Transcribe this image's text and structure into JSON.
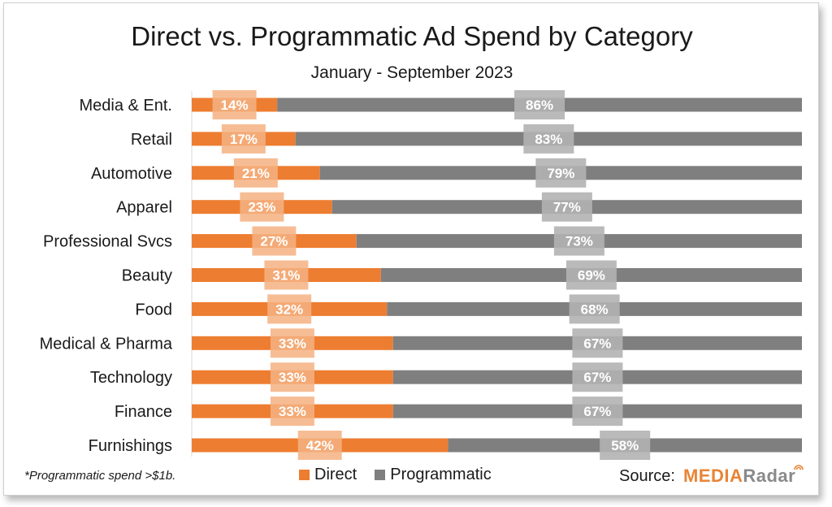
{
  "colors": {
    "direct": "#ed7d31",
    "programmatic": "#7f7f7f",
    "direct_label_bg": "#f4b183",
    "programmatic_label_bg": "#b3b3b3"
  },
  "footnote": "*Programmatic spend >$1b.",
  "source": {
    "label": "Source:",
    "logo_part1": "MEDIA",
    "logo_part2": "Radar",
    "logo_icon": "radar-signal-icon"
  },
  "chart_data": {
    "type": "bar",
    "orientation": "horizontal",
    "stacked": true,
    "percent_stacked": true,
    "title": "Direct vs. Programmatic Ad Spend by Category",
    "subtitle": "January - September 2023",
    "categories": [
      "Media & Ent.",
      "Retail",
      "Automotive",
      "Apparel",
      "Professional Svcs",
      "Beauty",
      "Food",
      "Medical & Pharma",
      "Technology",
      "Finance",
      "Furnishings"
    ],
    "series": [
      {
        "name": "Direct",
        "values": [
          14,
          17,
          21,
          23,
          27,
          31,
          32,
          33,
          33,
          33,
          42
        ],
        "labels": [
          "14%",
          "17%",
          "21%",
          "23%",
          "27%",
          "31%",
          "32%",
          "33%",
          "33%",
          "33%",
          "42%"
        ]
      },
      {
        "name": "Programmatic",
        "values": [
          86,
          83,
          79,
          77,
          73,
          69,
          68,
          67,
          67,
          67,
          58
        ],
        "labels": [
          "86%",
          "83%",
          "79%",
          "77%",
          "73%",
          "69%",
          "68%",
          "67%",
          "67%",
          "67%",
          "58%"
        ]
      }
    ],
    "xlim": [
      0,
      100
    ],
    "grid": false,
    "legend": "bottom"
  }
}
